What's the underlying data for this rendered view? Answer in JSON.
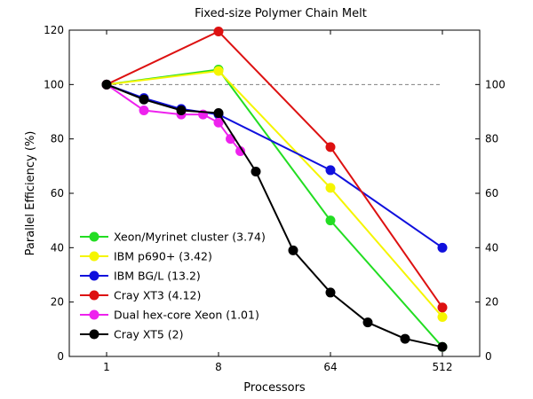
{
  "chart_data": {
    "type": "line",
    "title": "Fixed-size Polymer Chain Melt",
    "xlabel": "Processors",
    "ylabel": "Parallel Efficiency (%)",
    "x_scale": "log2",
    "xlim": [
      0.5,
      1024
    ],
    "ylim": [
      0,
      120
    ],
    "x_ticks": [
      1,
      8,
      64,
      512
    ],
    "x_tick_labels": [
      "1",
      "8",
      "64",
      "512"
    ],
    "y_ticks_left": [
      0,
      20,
      40,
      60,
      80,
      100,
      120
    ],
    "y_ticks_right": [
      0,
      20,
      40,
      60,
      80,
      100
    ],
    "reference_line": {
      "y": 100,
      "style": "dashed",
      "color": "#808080"
    },
    "legend_position": "lower-left",
    "series": [
      {
        "name": "Xeon/Myrinet cluster (3.74)",
        "color": "#22dd22",
        "x": [
          1,
          8,
          64,
          512
        ],
        "y": [
          100,
          105.5,
          50,
          3.5
        ]
      },
      {
        "name": "IBM p690+ (3.42)",
        "color": "#f5f500",
        "x": [
          1,
          8,
          64,
          512
        ],
        "y": [
          100,
          105,
          62,
          14.5
        ]
      },
      {
        "name": "IBM BG/L (13.2)",
        "color": "#1010dd",
        "x": [
          1,
          2,
          4,
          8,
          64,
          512
        ],
        "y": [
          100,
          95,
          91,
          89,
          68.5,
          40
        ]
      },
      {
        "name": "Cray XT3 (4.12)",
        "color": "#dd1111",
        "x": [
          1,
          8,
          64,
          512
        ],
        "y": [
          100,
          119.5,
          77,
          18
        ]
      },
      {
        "name": "Dual hex-core Xeon (1.01)",
        "color": "#ee22ee",
        "x": [
          1,
          2,
          4,
          6,
          8,
          10,
          12
        ],
        "y": [
          100,
          90.5,
          89,
          89,
          86,
          80,
          75.5
        ]
      },
      {
        "name": "Cray XT5 (2)",
        "color": "#000000",
        "x": [
          1,
          2,
          4,
          8,
          16,
          32,
          64,
          128,
          256,
          512
        ],
        "y": [
          100,
          94.5,
          90.5,
          89.5,
          68,
          39,
          23.5,
          12.5,
          6.5,
          3.5
        ]
      }
    ]
  }
}
